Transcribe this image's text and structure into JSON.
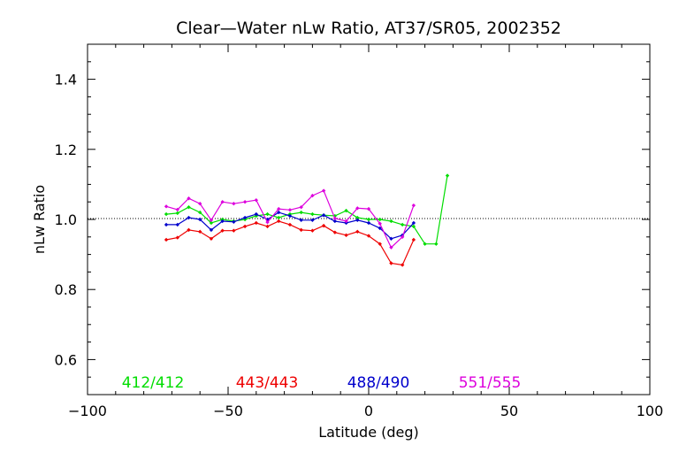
{
  "chart_data": {
    "type": "line",
    "title": "Clear—Water nLw Ratio, AT37/SR05, 2002352",
    "xlabel": "Latitude (deg)",
    "ylabel": "nLw Ratio",
    "xlim": [
      -100,
      100
    ],
    "ylim": [
      0.5,
      1.5
    ],
    "xticks": [
      -100,
      -50,
      0,
      50,
      100
    ],
    "yticks": [
      0.6,
      0.8,
      1.0,
      1.2,
      1.4
    ],
    "xtick_labels": [
      "−100",
      "−50",
      "0",
      "50",
      "100"
    ],
    "ytick_labels": [
      "0.6",
      "0.8",
      "1.0",
      "1.2",
      "1.4"
    ],
    "reference_line": 1.0,
    "grid": false,
    "legend_placement": "bottom",
    "x": [
      -72,
      -68,
      -64,
      -60,
      -56,
      -52,
      -48,
      -44,
      -40,
      -36,
      -32,
      -28,
      -24,
      -20,
      -16,
      -12,
      -8,
      -4,
      0,
      4,
      8,
      12,
      16,
      20,
      24,
      28,
      32,
      36
    ],
    "series": [
      {
        "name": "412/412",
        "color": "#00dd00",
        "values": [
          1.015,
          1.018,
          1.035,
          1.02,
          0.99,
          1.0,
          0.995,
          1.0,
          1.01,
          1.015,
          1.005,
          1.015,
          1.02,
          1.015,
          1.012,
          1.01,
          1.025,
          1.005,
          1.0,
          1.0,
          0.995,
          0.985,
          0.98,
          0.93,
          0.93,
          1.125,
          null,
          null
        ]
      },
      {
        "name": "443/443",
        "color": "#ee0000",
        "values": [
          0.942,
          0.948,
          0.97,
          0.965,
          0.945,
          0.968,
          0.968,
          0.98,
          0.99,
          0.98,
          0.995,
          0.985,
          0.97,
          0.968,
          0.982,
          0.963,
          0.955,
          0.965,
          0.953,
          0.93,
          0.875,
          0.87,
          0.942,
          null,
          null,
          null,
          null,
          null
        ]
      },
      {
        "name": "488/490",
        "color": "#0000cc",
        "values": [
          0.985,
          0.985,
          1.005,
          1.0,
          0.97,
          0.995,
          0.993,
          1.005,
          1.015,
          1.0,
          1.02,
          1.01,
          0.998,
          0.998,
          1.012,
          0.995,
          0.99,
          0.998,
          0.99,
          0.975,
          0.945,
          0.955,
          0.99,
          null,
          null,
          null,
          null,
          null
        ]
      },
      {
        "name": "551/555",
        "color": "#dd00dd",
        "values": [
          1.037,
          1.028,
          1.06,
          1.045,
          0.998,
          1.05,
          1.045,
          1.05,
          1.055,
          0.992,
          1.03,
          1.027,
          1.035,
          1.068,
          1.082,
          1.003,
          0.995,
          1.032,
          1.03,
          0.988,
          0.92,
          0.95,
          1.04,
          null,
          null,
          null,
          null,
          null
        ]
      }
    ]
  }
}
